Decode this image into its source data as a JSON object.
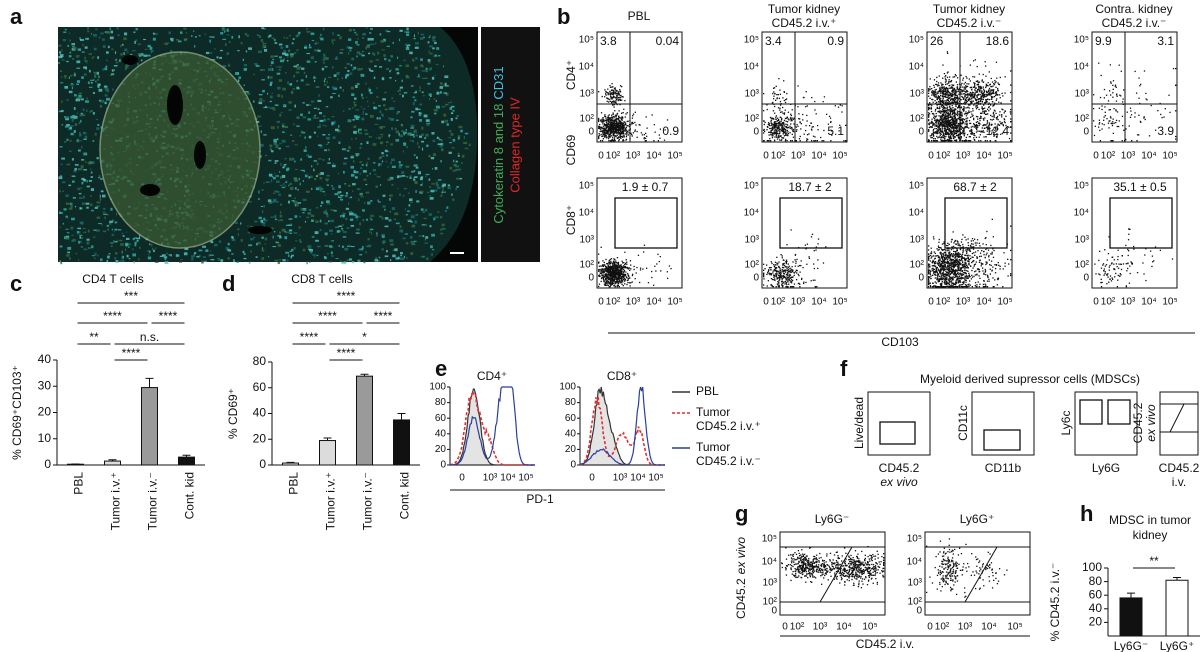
{
  "panel_labels": [
    "a",
    "b",
    "c",
    "d",
    "e",
    "f",
    "g",
    "h"
  ],
  "a": {
    "stains": [
      "Cytokeratin 8 and 18",
      "CD31",
      "Collagen type IV"
    ]
  },
  "b": {
    "columns": [
      [
        "PBL"
      ],
      [
        "Tumor kidney",
        "CD45.2 i.v.⁺"
      ],
      [
        "Tumor kidney",
        "CD45.2 i.v.⁻"
      ],
      [
        "Contra. kidney",
        "CD45.2 i.v.⁻"
      ]
    ],
    "row_labels": [
      "CD4⁺",
      "CD8⁺"
    ],
    "y_label": "CD69",
    "x_label": "CD103",
    "y_ticks": [
      "10⁵",
      "10⁴",
      "10³",
      "10²",
      "0"
    ],
    "x_ticks": [
      "0",
      "10²",
      "10³",
      "10⁴",
      "10⁵"
    ],
    "quadrants": [
      [
        3.8,
        0.04,
        0.9
      ],
      [
        3.4,
        0.9,
        5.1
      ],
      [
        26,
        18.6,
        12.4
      ],
      [
        9.9,
        3.1,
        3.9
      ]
    ],
    "gates": [
      "1.9 ± 0.7",
      "18.7 ± 2",
      "68.7 ± 2",
      "35.1 ± 0.5"
    ]
  },
  "c": {
    "type": "bar",
    "title": [
      "CD4 T cells"
    ],
    "y_label": "% CD69⁺CD103⁺",
    "categories": [
      "PBL",
      "Tumor i.v.⁺",
      "Tumor i.v.⁻",
      "Cont. kid"
    ],
    "values": [
      0.3,
      1.5,
      29.5,
      3
    ],
    "errors": [
      0.1,
      0.5,
      3.5,
      0.7
    ],
    "colors": [
      "#ffffff",
      "#dcdcdc",
      "#9a9a9a",
      "#111111"
    ],
    "ylim": [
      0,
      40
    ],
    "yticks": [
      0,
      10,
      20,
      30,
      40
    ],
    "significance": [
      "***",
      "****",
      "****",
      "**",
      "n.s.",
      "****"
    ]
  },
  "d": {
    "type": "bar",
    "title": [
      "CD8 T cells"
    ],
    "y_label": "% CD69⁺",
    "categories": [
      "PBL",
      "Tumor i.v.⁺",
      "Tumor i.v.⁻",
      "Cont. kid"
    ],
    "values": [
      1.5,
      19,
      69,
      35
    ],
    "errors": [
      0.5,
      2,
      1.5,
      5
    ],
    "colors": [
      "#ffffff",
      "#dcdcdc",
      "#9a9a9a",
      "#111111"
    ],
    "ylim": [
      0,
      80
    ],
    "yticks": [
      0,
      20,
      40,
      60,
      80
    ],
    "significance": [
      "****",
      "****",
      "****",
      "****",
      "*",
      "****"
    ]
  },
  "e": {
    "plots": [
      "CD4⁺",
      "CD8⁺"
    ],
    "yticks": [
      0,
      20,
      40,
      60,
      80,
      100
    ],
    "ylim": [
      0,
      100
    ],
    "x_ticks": [
      "0",
      "10³",
      "10⁴",
      "10⁵"
    ],
    "x_label": "PD-1",
    "legend": [
      {
        "lines": [
          "PBL"
        ],
        "color": "#333333"
      },
      {
        "lines": [
          "Tumor",
          "CD45.2 i.v.⁺"
        ],
        "color": "#e03030"
      },
      {
        "lines": [
          "Tumor",
          "CD45.2 i.v.⁻"
        ],
        "color": "#2a3f9a"
      }
    ]
  },
  "f": {
    "title": "Myeloid derived supressor cells (MDSCs)",
    "plots": [
      {
        "y": [
          "Live/dead"
        ],
        "x": [
          "CD45.2",
          "ex vivo"
        ]
      },
      {
        "y": [
          "CD11c"
        ],
        "x": [
          "CD11b"
        ]
      },
      {
        "y": [
          "Ly6c"
        ],
        "x": [
          "Ly6G"
        ]
      },
      {
        "y": [
          "CD45.2",
          "ex vivo"
        ],
        "x": [
          "CD45.2",
          "i.v."
        ]
      }
    ]
  },
  "g": {
    "plots": [
      "Ly6G⁻",
      "Ly6G⁺"
    ],
    "y_label": [
      "CD45.2",
      "ex vivo"
    ],
    "x_label": "CD45.2 i.v.",
    "y_ticks": [
      "10⁵",
      "10⁴",
      "10³",
      "10²",
      "0"
    ],
    "x_ticks": [
      "0",
      "10²",
      "10³",
      "10⁴",
      "10⁵"
    ]
  },
  "h": {
    "type": "bar",
    "title": [
      "MDSC in tumor",
      "kidney"
    ],
    "y_label": "% CD45.2 i.v.⁻",
    "categories": [
      "Ly6G⁻",
      "Ly6G⁺"
    ],
    "values": [
      56,
      82
    ],
    "errors": [
      7,
      4
    ],
    "colors": [
      "#111111",
      "#ffffff"
    ],
    "ylim": [
      0,
      100
    ],
    "yticks": [
      20,
      40,
      60,
      80,
      100
    ],
    "significance": [
      "**"
    ]
  }
}
